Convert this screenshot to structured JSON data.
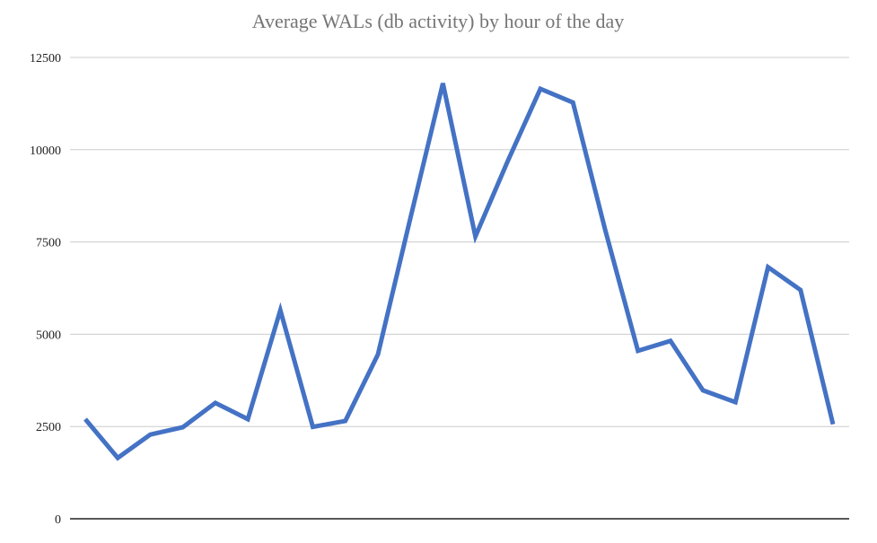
{
  "colors": {
    "series": "#4472c4",
    "grid": "#cccccc",
    "axis": "#222222",
    "title": "#757575"
  },
  "chart_data": {
    "type": "line",
    "title": "Average WALs (db activity) by hour of the day",
    "xlabel": "",
    "ylabel": "",
    "ylim": [
      0,
      12500
    ],
    "yticks": [
      0,
      2500,
      5000,
      7500,
      10000,
      12500
    ],
    "ytick_labels": [
      "0",
      "2500",
      "5000",
      "7500",
      "10000",
      "12500"
    ],
    "grid": true,
    "legend": "none",
    "x": [
      0,
      1,
      2,
      3,
      4,
      5,
      6,
      7,
      8,
      9,
      10,
      11,
      12,
      13,
      14,
      15,
      16,
      17,
      18,
      19,
      20,
      21,
      22,
      23
    ],
    "series": [
      {
        "values": [
          2700,
          1650,
          2280,
          2480,
          3140,
          2700,
          5650,
          2490,
          2650,
          4450,
          8150,
          11800,
          7650,
          9700,
          11650,
          11280,
          7800,
          4550,
          4820,
          3480,
          3160,
          6820,
          6200,
          2560
        ]
      }
    ]
  }
}
